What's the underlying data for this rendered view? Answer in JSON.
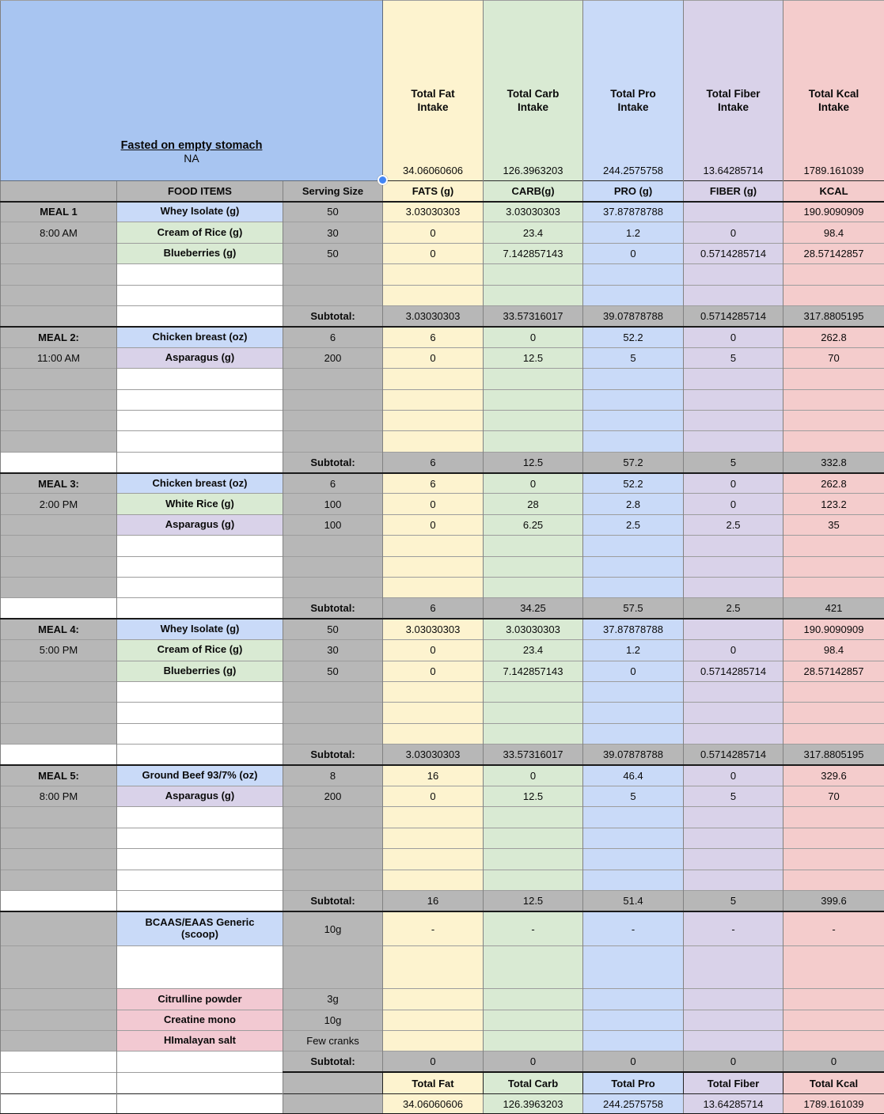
{
  "colors": {
    "yellow": "#fdf3cf",
    "green": "#d9ead3",
    "blue": "#c9daf8",
    "purple": "#d9d2e9",
    "pink": "#f4cccc",
    "item_pink": "#f2c9d2",
    "gray": "#b7b7b7",
    "selected_cell_blue": "#a8c5f1",
    "selection_handle_blue": "#4285f4"
  },
  "note_cell": {
    "line1": "Fasted on empty stomach",
    "line2": "NA"
  },
  "intake_summary": [
    {
      "key": "fat",
      "label": "Total Fat Intake",
      "value": "34.06060606",
      "tint": "yellow"
    },
    {
      "key": "carb",
      "label": "Total Carb Intake",
      "value": "126.3963203",
      "tint": "green"
    },
    {
      "key": "pro",
      "label": "Total Pro Intake",
      "value": "244.2575758",
      "tint": "blue"
    },
    {
      "key": "fiber",
      "label": "Total Fiber Intake",
      "value": "13.64285714",
      "tint": "purple"
    },
    {
      "key": "kcal",
      "label": "Total Kcal Intake",
      "value": "1789.161039",
      "tint": "pink"
    }
  ],
  "column_headers": {
    "food": "FOOD ITEMS",
    "serving": "Serving Size",
    "fats": "FATS (g)",
    "carb": "CARB(g)",
    "pro": "PRO (g)",
    "fiber": "FIBER (g)",
    "kcal": "KCAL"
  },
  "labels": {
    "subtotal": "Subtotal:"
  },
  "meals": [
    {
      "label": "MEAL 1",
      "time": "8:00 AM",
      "empty_rows": 2,
      "subtotal_meal_col": "gray",
      "items": [
        {
          "name": "Whey Isolate (g)",
          "tint": "blue",
          "serving": "50",
          "values": [
            "3.03030303",
            "3.03030303",
            "37.87878788",
            "",
            "190.9090909"
          ]
        },
        {
          "name": "Cream of Rice (g)",
          "tint": "green",
          "serving": "30",
          "values": [
            "0",
            "23.4",
            "1.2",
            "0",
            "98.4"
          ]
        },
        {
          "name": "Blueberries (g)",
          "tint": "green",
          "serving": "50",
          "values": [
            "0",
            "7.142857143",
            "0",
            "0.5714285714",
            "28.57142857"
          ]
        }
      ],
      "subtotal": [
        "3.03030303",
        "33.57316017",
        "39.07878788",
        "0.5714285714",
        "317.8805195"
      ]
    },
    {
      "label": "MEAL 2:",
      "time": "11:00 AM",
      "empty_rows": 4,
      "subtotal_meal_col": "white",
      "items": [
        {
          "name": "Chicken breast (oz)",
          "tint": "blue",
          "serving": "6",
          "values": [
            "6",
            "0",
            "52.2",
            "0",
            "262.8"
          ]
        },
        {
          "name": "Asparagus  (g)",
          "tint": "purple",
          "serving": "200",
          "values": [
            "0",
            "12.5",
            "5",
            "5",
            "70"
          ]
        }
      ],
      "subtotal": [
        "6",
        "12.5",
        "57.2",
        "5",
        "332.8"
      ]
    },
    {
      "label": "MEAL 3:",
      "time": "2:00 PM",
      "empty_rows": 3,
      "subtotal_meal_col": "white",
      "items": [
        {
          "name": "Chicken breast (oz)",
          "tint": "blue",
          "serving": "6",
          "values": [
            "6",
            "0",
            "52.2",
            "0",
            "262.8"
          ]
        },
        {
          "name": "White Rice  (g)",
          "tint": "green",
          "serving": "100",
          "values": [
            "0",
            "28",
            "2.8",
            "0",
            "123.2"
          ]
        },
        {
          "name": "Asparagus  (g)",
          "tint": "purple",
          "serving": "100",
          "values": [
            "0",
            "6.25",
            "2.5",
            "2.5",
            "35"
          ]
        }
      ],
      "subtotal": [
        "6",
        "34.25",
        "57.5",
        "2.5",
        "421"
      ]
    },
    {
      "label": "MEAL 4:",
      "time": "5:00 PM",
      "empty_rows": 3,
      "subtotal_meal_col": "white",
      "items": [
        {
          "name": "Whey Isolate (g)",
          "tint": "blue",
          "serving": "50",
          "values": [
            "3.03030303",
            "3.03030303",
            "37.87878788",
            "",
            "190.9090909"
          ]
        },
        {
          "name": "Cream of Rice (g)",
          "tint": "green",
          "serving": "30",
          "values": [
            "0",
            "23.4",
            "1.2",
            "0",
            "98.4"
          ]
        },
        {
          "name": "Blueberries (g)",
          "tint": "green",
          "serving": "50",
          "values": [
            "0",
            "7.142857143",
            "0",
            "0.5714285714",
            "28.57142857"
          ]
        }
      ],
      "subtotal": [
        "3.03030303",
        "33.57316017",
        "39.07878788",
        "0.5714285714",
        "317.8805195"
      ]
    },
    {
      "label": "MEAL 5:",
      "time": "8:00 PM",
      "empty_rows": 4,
      "subtotal_meal_col": "white",
      "items": [
        {
          "name": "Ground Beef 93/7% (oz)",
          "tint": "blue",
          "serving": "8",
          "values": [
            "16",
            "0",
            "46.4",
            "0",
            "329.6"
          ]
        },
        {
          "name": "Asparagus  (g)",
          "tint": "purple",
          "serving": "200",
          "values": [
            "0",
            "12.5",
            "5",
            "5",
            "70"
          ]
        }
      ],
      "subtotal": [
        "16",
        "12.5",
        "51.4",
        "5",
        "399.6"
      ]
    }
  ],
  "supplements": {
    "items": [
      {
        "name": "BCAAS/EAAS Generic (scoop)",
        "tint": "blue",
        "serving": "10g",
        "values": [
          "-",
          "-",
          "-",
          "-",
          "-"
        ]
      },
      {
        "name": "Citrulline powder",
        "tint": "itempink",
        "serving": "3g",
        "values": [
          "",
          "",
          "",
          "",
          ""
        ]
      },
      {
        "name": "Creatine mono",
        "tint": "itempink",
        "serving": "10g",
        "values": [
          "",
          "",
          "",
          "",
          ""
        ]
      },
      {
        "name": "HImalayan salt",
        "tint": "itempink",
        "serving": "Few cranks",
        "values": [
          "",
          "",
          "",
          "",
          ""
        ]
      }
    ],
    "subtotal": [
      "0",
      "0",
      "0",
      "0",
      "0"
    ]
  },
  "grand_totals": {
    "labels": [
      "Total Fat",
      "Total Carb",
      "Total Pro",
      "Total Fiber",
      "Total Kcal"
    ],
    "values": [
      "34.06060606",
      "126.3963203",
      "244.2575758",
      "13.64285714",
      "1789.161039"
    ]
  }
}
